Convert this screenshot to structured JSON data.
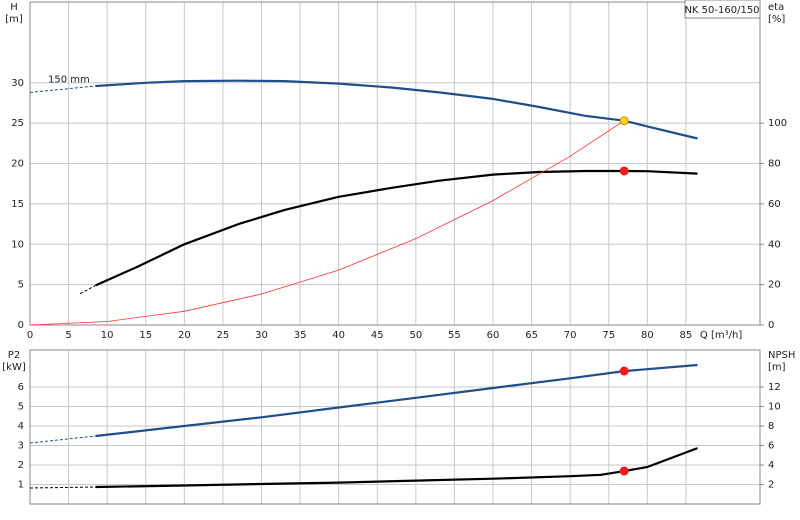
{
  "chart_data": [
    {
      "type": "line",
      "title": "NK 50-160/150",
      "y_label": "H",
      "y_unit": "[m]",
      "y2_label": "eta",
      "y2_unit": "[%]",
      "x_label": "Q [m³/h]",
      "annotation": "150 mm",
      "xlim": [
        0,
        94.6
      ],
      "xticks": [
        0,
        5,
        10,
        15,
        20,
        25,
        30,
        35,
        40,
        45,
        50,
        55,
        60,
        65,
        70,
        75,
        80,
        85
      ],
      "ylim": [
        0,
        40
      ],
      "yticks": [
        0,
        5,
        10,
        15,
        20,
        25,
        30
      ],
      "y2lim": [
        0,
        160
      ],
      "y2ticks": [
        0,
        20,
        40,
        60,
        80,
        100
      ],
      "grid": true,
      "xtick_labels": true,
      "series": [
        {
          "style": "dashed",
          "color": "#1f4e8c",
          "x": [
            0,
            8.5
          ],
          "values": [
            28.8,
            29.6
          ]
        },
        {
          "style": "solid",
          "color": "#1f4e8c",
          "x": [
            8.5,
            15,
            20,
            27,
            33,
            40,
            47,
            53,
            60,
            66,
            72,
            77,
            80,
            86.5
          ],
          "values": [
            29.6,
            30.0,
            30.2,
            30.25,
            30.2,
            29.9,
            29.4,
            28.8,
            28.0,
            27.0,
            25.9,
            25.3,
            24.6,
            23.1
          ]
        },
        {
          "style": "dashed",
          "axis": "y2",
          "color": "#000000",
          "x": [
            6.5,
            8.5
          ],
          "values": [
            15.5,
            19.6
          ]
        },
        {
          "style": "solid",
          "axis": "y2",
          "color": "#000000",
          "x": [
            8.5,
            14,
            20,
            27,
            33,
            40,
            47,
            53,
            60,
            66,
            72,
            77,
            80,
            86.5
          ],
          "values": [
            19.6,
            29,
            40,
            50,
            57,
            63.5,
            68,
            71.5,
            74.5,
            75.8,
            76.3,
            76.3,
            76.2,
            75.0
          ]
        },
        {
          "style": "thin",
          "color": "#ff3030",
          "x": [
            0,
            10,
            20,
            30,
            40,
            50,
            60,
            70,
            77
          ],
          "values": [
            0,
            0.43,
            1.7,
            3.84,
            6.8,
            10.7,
            15.4,
            20.9,
            25.3
          ]
        },
        {
          "style": "marker",
          "color": "#ffd21f",
          "x": [
            77
          ],
          "values": [
            25.3
          ]
        },
        {
          "style": "marker",
          "axis": "y2",
          "color": "#ee1c1c",
          "x": [
            77
          ],
          "values": [
            76.3
          ]
        }
      ]
    },
    {
      "type": "line",
      "y_label": "P2",
      "y_unit": "[kW]",
      "y2_label": "NPSH",
      "y2_unit": "[m]",
      "xlim": [
        0,
        94.6
      ],
      "xticks": [
        0,
        5,
        10,
        15,
        20,
        25,
        30,
        35,
        40,
        45,
        50,
        55,
        60,
        65,
        70,
        75,
        80,
        85
      ],
      "ylim": [
        0,
        7.9
      ],
      "yticks": [
        1,
        2,
        3,
        4,
        5,
        6
      ],
      "y2lim": [
        0,
        15.8
      ],
      "y2ticks": [
        2,
        4,
        6,
        8,
        10,
        12
      ],
      "grid": true,
      "xtick_labels": false,
      "series": [
        {
          "style": "dashed",
          "color": "#1f4e8c",
          "x": [
            0,
            8.5
          ],
          "values": [
            3.13,
            3.49
          ]
        },
        {
          "style": "solid",
          "color": "#1f4e8c",
          "x": [
            8.5,
            20,
            30,
            40,
            50,
            60,
            70,
            77,
            86.5
          ],
          "values": [
            3.49,
            4.0,
            4.45,
            4.95,
            5.45,
            5.95,
            6.45,
            6.82,
            7.13
          ]
        },
        {
          "style": "dashed",
          "axis": "y2",
          "color": "#000000",
          "x": [
            0,
            8.5
          ],
          "values": [
            1.64,
            1.74
          ]
        },
        {
          "style": "solid",
          "axis": "y2",
          "color": "#000000",
          "x": [
            8.5,
            20,
            30,
            40,
            50,
            60,
            70,
            74,
            77,
            80,
            86.5
          ],
          "values": [
            1.74,
            1.9,
            2.05,
            2.2,
            2.4,
            2.6,
            2.85,
            3.0,
            3.38,
            3.8,
            5.74
          ]
        },
        {
          "style": "marker",
          "color": "#ee1c1c",
          "x": [
            77
          ],
          "values": [
            6.82
          ]
        },
        {
          "style": "marker",
          "axis": "y2",
          "color": "#ee1c1c",
          "x": [
            77
          ],
          "values": [
            3.38
          ]
        }
      ]
    }
  ]
}
